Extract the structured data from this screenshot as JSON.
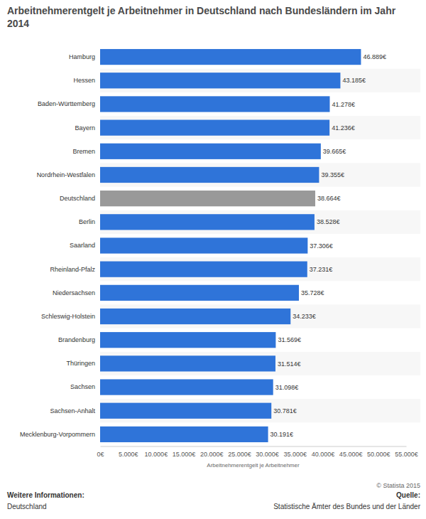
{
  "chart_data": {
    "type": "bar",
    "title": "Arbeitnehmerentgelt je Arbeitnehmer in Deutschland nach Bundesländern im Jahr 2014",
    "x_label": "Arbeitnehmerentgelt je Arbeitnehmer",
    "orientation": "horizontal",
    "categories": [
      "Hamburg",
      "Hessen",
      "Baden-Württemberg",
      "Bayern",
      "Bremen",
      "Nordrhein-Westfalen",
      "Deutschland",
      "Berlin",
      "Saarland",
      "Rheinland-Pfalz",
      "Niedersachsen",
      "Schleswig-Holstein",
      "Brandenburg",
      "Thüringen",
      "Sachsen",
      "Sachsen-Anhalt",
      "Mecklenburg-Vorpommern"
    ],
    "values": [
      46889,
      43185,
      41278,
      41236,
      39665,
      39355,
      38664,
      38528,
      37306,
      37231,
      35728,
      34233,
      31569,
      31514,
      31098,
      30781,
      30191
    ],
    "value_labels": [
      "46.889€",
      "43.185€",
      "41.278€",
      "41.236€",
      "39.665€",
      "39.355€",
      "38.664€",
      "38.528€",
      "37.306€",
      "37.231€",
      "35.728€",
      "34.233€",
      "31.569€",
      "31.514€",
      "31.098€",
      "30.781€",
      "30.191€"
    ],
    "colors": [
      "#2f74d9",
      "#2f74d9",
      "#2f74d9",
      "#2f74d9",
      "#2f74d9",
      "#2f74d9",
      "#999999",
      "#2f74d9",
      "#2f74d9",
      "#2f74d9",
      "#2f74d9",
      "#2f74d9",
      "#2f74d9",
      "#2f74d9",
      "#2f74d9",
      "#2f74d9",
      "#2f74d9"
    ],
    "data_labels": true,
    "grid": false,
    "xlim": [
      0,
      55000
    ],
    "xticks": [
      {
        "value": 0,
        "label": "0€"
      },
      {
        "value": 5000,
        "label": "5.000€"
      },
      {
        "value": 10000,
        "label": "10.000€"
      },
      {
        "value": 15000,
        "label": "15.000€"
      },
      {
        "value": 20000,
        "label": "20.000€"
      },
      {
        "value": 25000,
        "label": "25.000€"
      },
      {
        "value": 30000,
        "label": "30.000€"
      },
      {
        "value": 35000,
        "label": "35.000€"
      },
      {
        "value": 40000,
        "label": "40.000€"
      },
      {
        "value": 45000,
        "label": "45.000€"
      },
      {
        "value": 50000,
        "label": "50.000€"
      },
      {
        "value": 55000,
        "label": "55.000€"
      }
    ],
    "annotations": [
      "© Statista 2015",
      "Weitere Informationen:",
      "Deutschland",
      "Quelle:",
      "Statistische Ämter des Bundes und der Länder"
    ]
  }
}
